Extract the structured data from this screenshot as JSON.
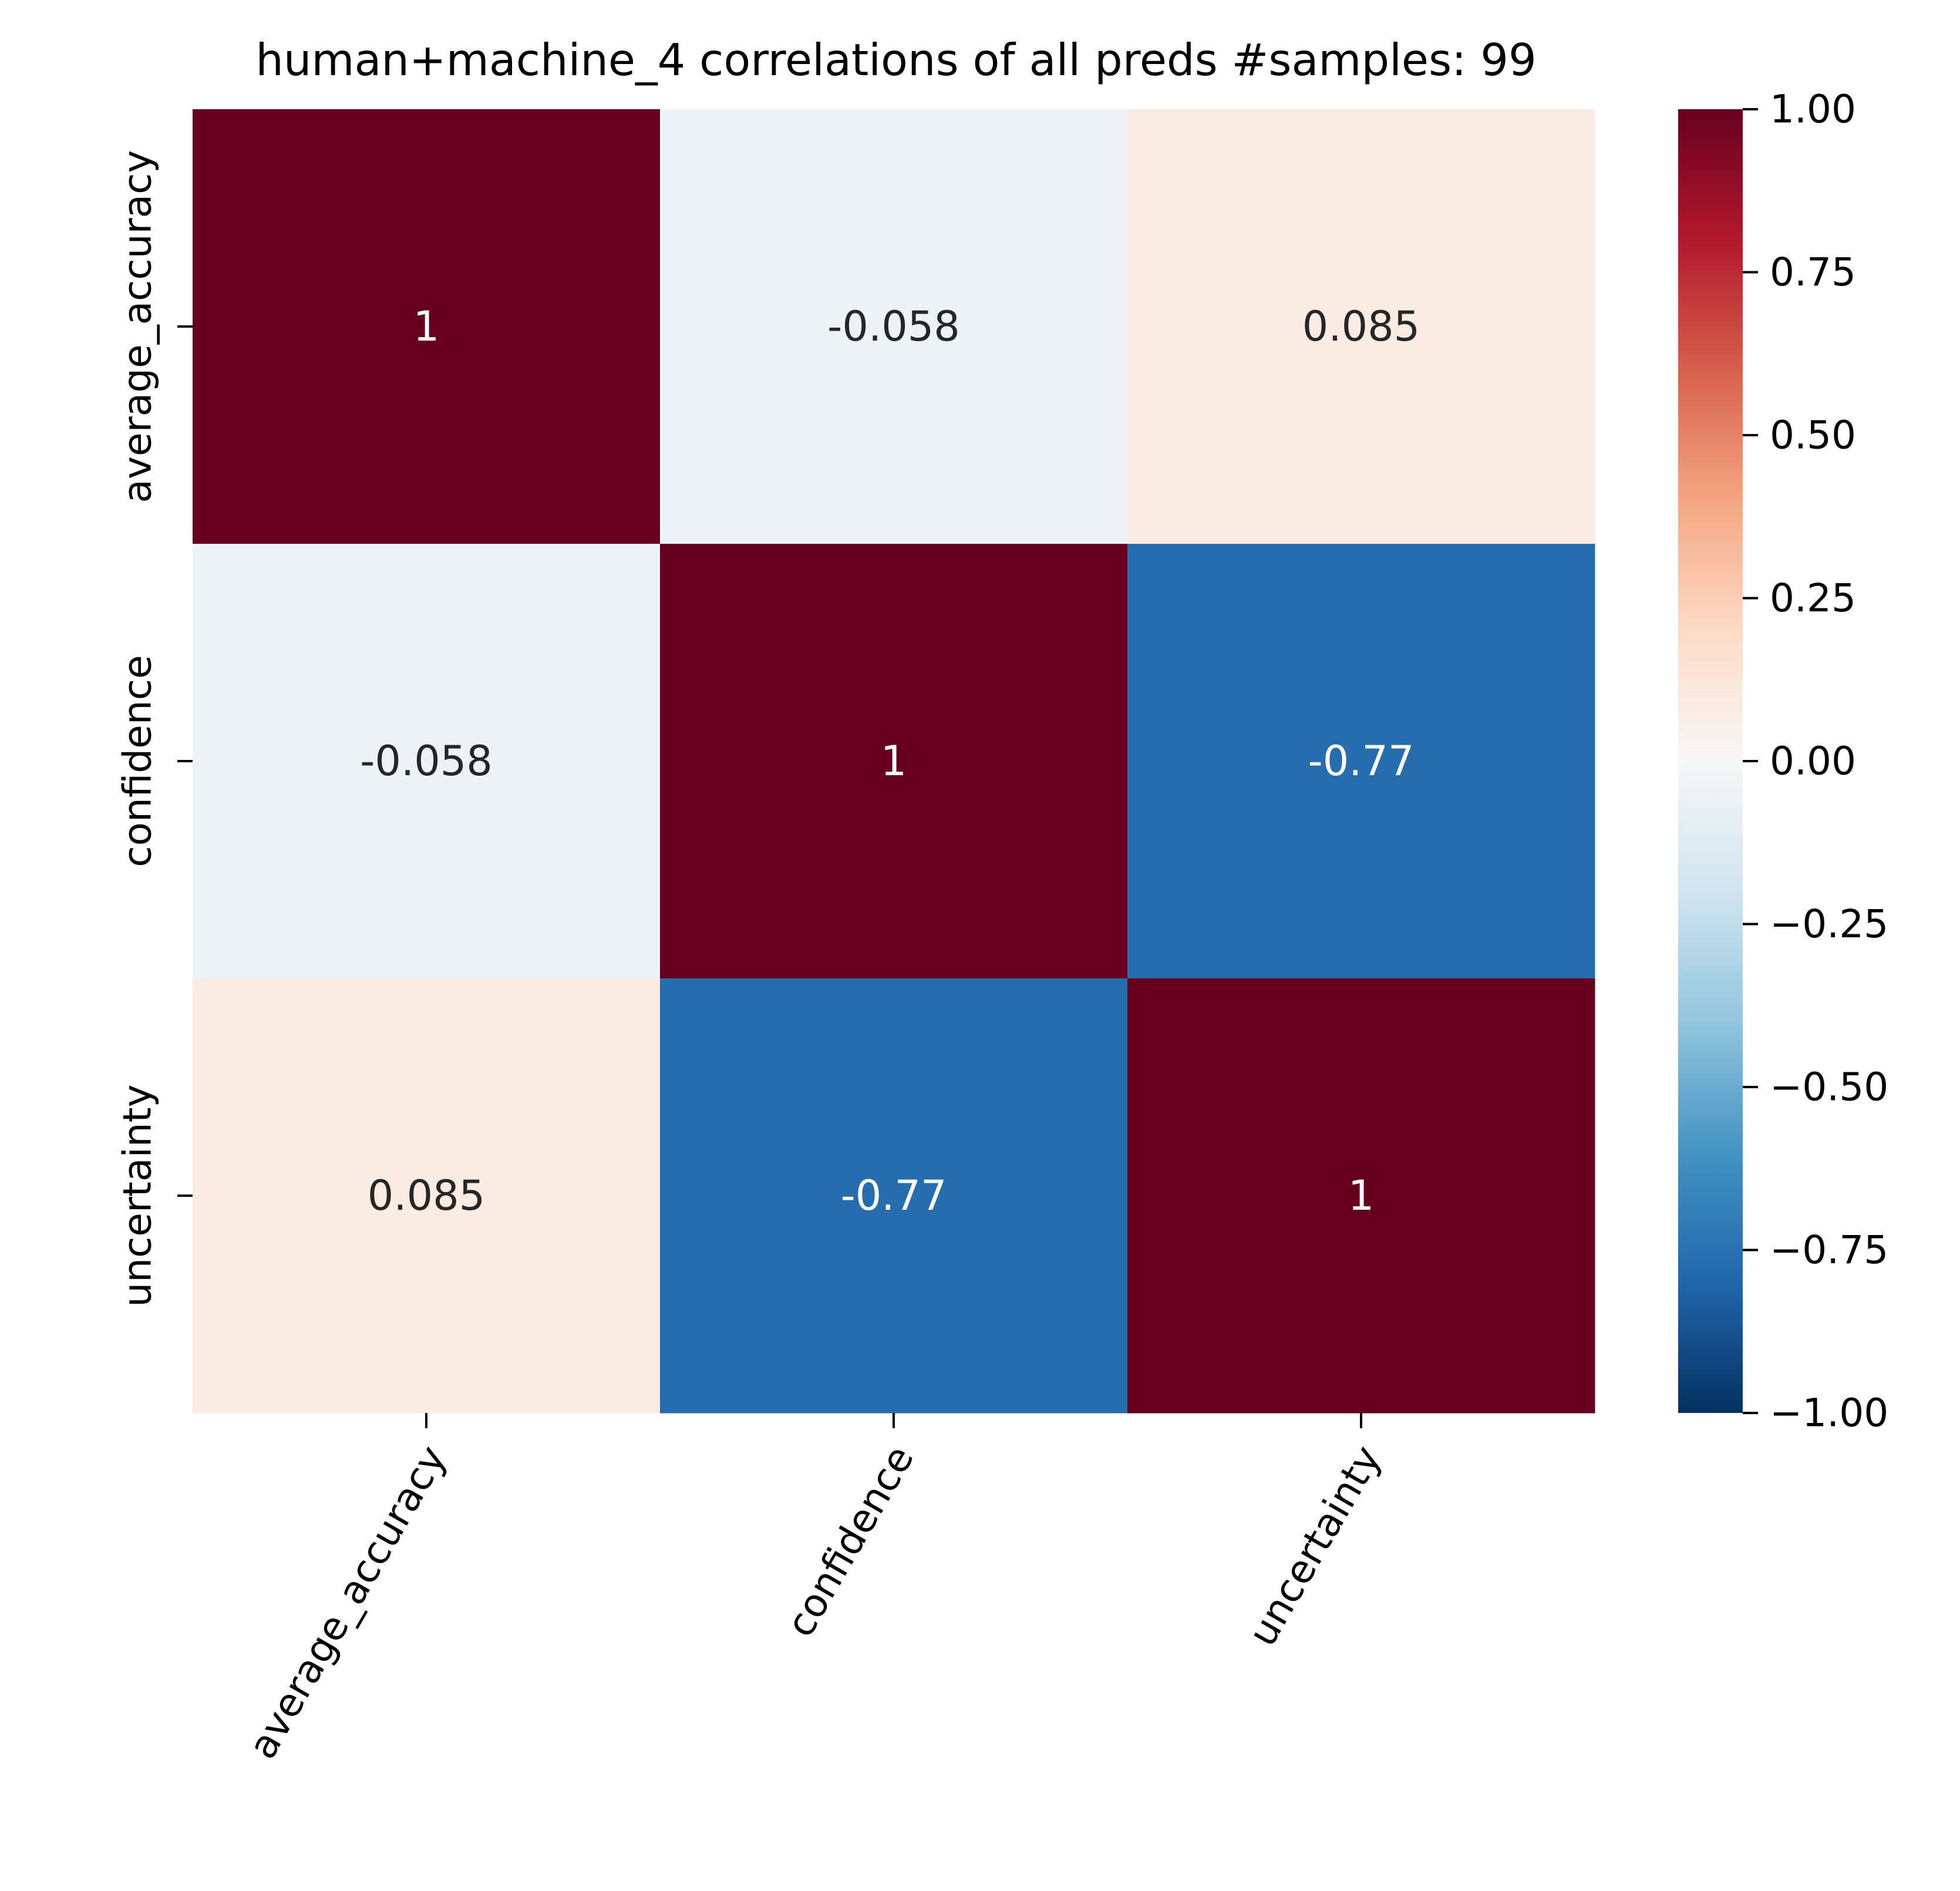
{
  "chart_data": {
    "type": "heatmap",
    "title": "human+machine_4 correlations of all preds #samples: 99",
    "xlabel": "",
    "ylabel": "",
    "x_categories": [
      "average_accuracy",
      "confidence",
      "uncertainty"
    ],
    "y_categories": [
      "average_accuracy",
      "confidence",
      "uncertainty"
    ],
    "values": [
      [
        1,
        -0.058,
        0.085
      ],
      [
        -0.058,
        1,
        -0.77
      ],
      [
        0.085,
        -0.77,
        1
      ]
    ],
    "annotations": [
      [
        "1",
        "-0.058",
        "0.085"
      ],
      [
        "-0.058",
        "1",
        "-0.77"
      ],
      [
        "0.085",
        "-0.77",
        "1"
      ]
    ],
    "colormap": "RdBu_r",
    "value_range": [
      -1.0,
      1.0
    ],
    "colorbar": {
      "ticks": [
        1.0,
        0.75,
        0.5,
        0.25,
        0.0,
        -0.25,
        -0.5,
        -0.75,
        -1.0
      ],
      "tick_labels": [
        "1.00",
        "0.75",
        "0.50",
        "0.25",
        "0.00",
        "−0.25",
        "−0.50",
        "−0.75",
        "−1.00"
      ]
    },
    "grid": false,
    "x_tick_rotation": 60
  }
}
